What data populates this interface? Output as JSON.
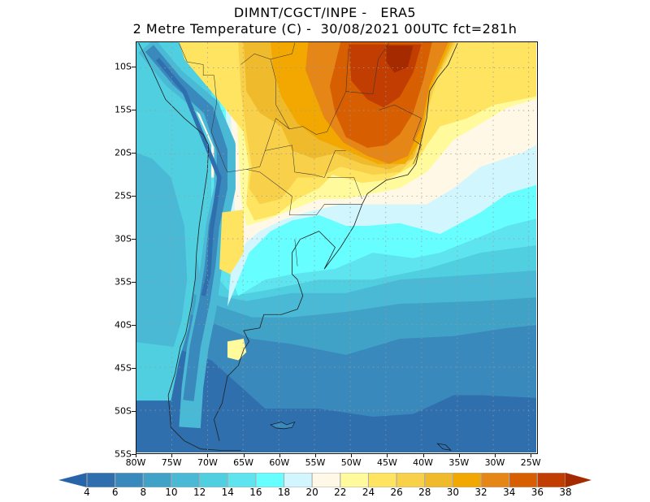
{
  "title": {
    "line1": "DIMNT/CGCT/INPE -   ERA5",
    "line2": "2 Metre Temperature (C) -  30/08/2021 00UTC fct=281h"
  },
  "axes": {
    "lon_labels": [
      "80W",
      "75W",
      "70W",
      "65W",
      "60W",
      "55W",
      "50W",
      "45W",
      "40W",
      "35W",
      "30W",
      "25W"
    ],
    "lat_labels": [
      "10S",
      "15S",
      "20S",
      "25S",
      "30S",
      "35S",
      "40S",
      "45S",
      "50S",
      "55S"
    ]
  },
  "colorbar": {
    "levels": [
      "4",
      "6",
      "8",
      "10",
      "12",
      "14",
      "16",
      "18",
      "20",
      "22",
      "24",
      "26",
      "28",
      "30",
      "32",
      "34",
      "36",
      "38"
    ],
    "colors": [
      "#2f6fae",
      "#3a89bc",
      "#41a2c8",
      "#4ab9d6",
      "#50cfe0",
      "#5ee4ef",
      "#66fefe",
      "#d2f6fe",
      "#fff8e6",
      "#fffb9c",
      "#fee461",
      "#f8d049",
      "#efbb2c",
      "#f2a800",
      "#e58617",
      "#d85e02",
      "#c13d01"
    ],
    "below_color": "#2865a8",
    "above_color": "#a52a00"
  }
}
